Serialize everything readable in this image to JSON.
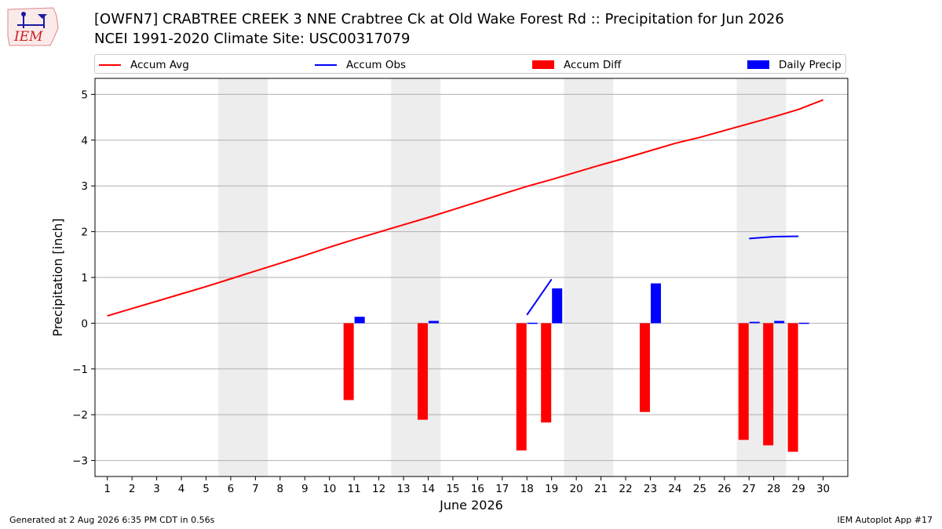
{
  "header": {
    "logo_text": "IEM",
    "title_line1": "[OWFN7] CRABTREE CREEK 3 NNE Crabtree Ck at Old Wake Forest Rd :: Precipitation for Jun 2026",
    "title_line2": "NCEI 1991-2020 Climate Site: USC00317079"
  },
  "legend": {
    "accum_avg": "Accum Avg",
    "accum_obs": "Accum Obs",
    "accum_diff": "Accum Diff",
    "daily_precip": "Daily Precip"
  },
  "footer": {
    "generated": "Generated at 2 Aug 2026 6:35 PM CDT in 0.56s",
    "app": "IEM Autoplot App #17"
  },
  "colors": {
    "avg": "#ff0000",
    "obs": "#0000ff",
    "diff": "#ff0000",
    "daily": "#0000ff",
    "weekend": "#ededed",
    "grid": "#b0b0b0"
  },
  "chart_data": {
    "type": "bar",
    "xlabel": "June 2026",
    "ylabel": "Precipitation [inch]",
    "xlim": [
      0.5,
      31.0
    ],
    "ylim": [
      -3.35,
      5.35
    ],
    "yticks": [
      5,
      4,
      3,
      2,
      1,
      0,
      -1,
      -2,
      -3
    ],
    "ytick_labels": [
      "5",
      "4",
      "3",
      "2",
      "1",
      "0",
      "−1",
      "−2",
      "−3"
    ],
    "xticks": [
      1,
      2,
      3,
      4,
      5,
      6,
      7,
      8,
      9,
      10,
      11,
      12,
      13,
      14,
      15,
      16,
      17,
      18,
      19,
      20,
      21,
      22,
      23,
      24,
      25,
      26,
      27,
      28,
      29,
      30
    ],
    "grid": true,
    "weekend_bands": [
      [
        6,
        7
      ],
      [
        13,
        14
      ],
      [
        20,
        21
      ],
      [
        27,
        28
      ]
    ],
    "accum_avg": {
      "days": [
        1,
        2,
        3,
        4,
        5,
        6,
        7,
        8,
        9,
        10,
        11,
        12,
        13,
        14,
        15,
        16,
        17,
        18,
        19,
        20,
        21,
        22,
        23,
        24,
        25,
        26,
        27,
        28,
        29,
        30
      ],
      "values": [
        0.16,
        0.32,
        0.48,
        0.64,
        0.8,
        0.97,
        1.14,
        1.31,
        1.48,
        1.66,
        1.83,
        1.99,
        2.15,
        2.31,
        2.48,
        2.65,
        2.82,
        2.99,
        3.14,
        3.3,
        3.46,
        3.61,
        3.77,
        3.93,
        4.06,
        4.21,
        4.36,
        4.51,
        4.67,
        4.88
      ]
    },
    "accum_obs": [
      {
        "days": [
          18,
          19
        ],
        "values": [
          0.18,
          0.96
        ]
      },
      {
        "days": [
          27,
          28,
          29
        ],
        "values": [
          1.85,
          1.89,
          1.9
        ]
      }
    ],
    "accum_diff": {
      "days": [
        11,
        14,
        18,
        19,
        23,
        27,
        28,
        29
      ],
      "values": [
        -1.68,
        -2.11,
        -2.78,
        -2.17,
        -1.94,
        -2.55,
        -2.67,
        -2.81
      ]
    },
    "daily_precip": {
      "days": [
        11,
        14,
        18,
        19,
        23,
        27,
        28,
        29
      ],
      "values": [
        0.14,
        0.05,
        0.01,
        0.76,
        0.87,
        0.03,
        0.05,
        0.01
      ]
    }
  }
}
